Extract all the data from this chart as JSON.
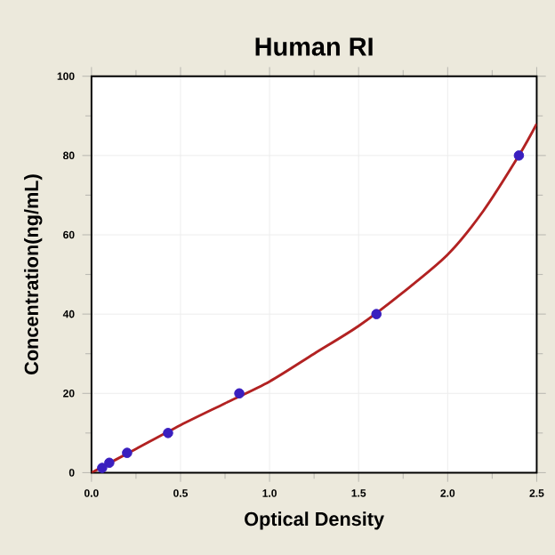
{
  "chart_data": {
    "type": "scatter",
    "title": "Human RI",
    "xlabel": "Optical Density",
    "ylabel": "Concentration(ng/mL)",
    "xlim": [
      0,
      2.5
    ],
    "ylim": [
      0,
      100
    ],
    "xticks": [
      {
        "value": 0,
        "label": "0.0"
      },
      0.5,
      {
        "value": 1,
        "label": "1.0"
      },
      1.5,
      {
        "value": 2,
        "label": "2.0"
      },
      2.5
    ],
    "yticks": [
      0,
      20,
      40,
      60,
      80,
      100
    ],
    "grid": true,
    "series": [
      {
        "type": "line",
        "color": "#b22222",
        "x": [
          0.0,
          0.25,
          0.5,
          0.75,
          1.0,
          1.25,
          1.5,
          1.75,
          2.0,
          2.2,
          2.4,
          2.5
        ],
        "values": [
          0,
          6,
          12,
          17.5,
          23,
          30,
          37,
          45.5,
          55,
          66,
          80,
          88
        ],
        "marker": "none"
      },
      {
        "type": "scatter",
        "color": "#3a1fbf",
        "x": [
          0.06,
          0.1,
          0.2,
          0.43,
          0.83,
          1.6,
          2.4
        ],
        "values": [
          1.2,
          2.5,
          5,
          10,
          20,
          40,
          80
        ],
        "marker": "circle"
      }
    ]
  }
}
